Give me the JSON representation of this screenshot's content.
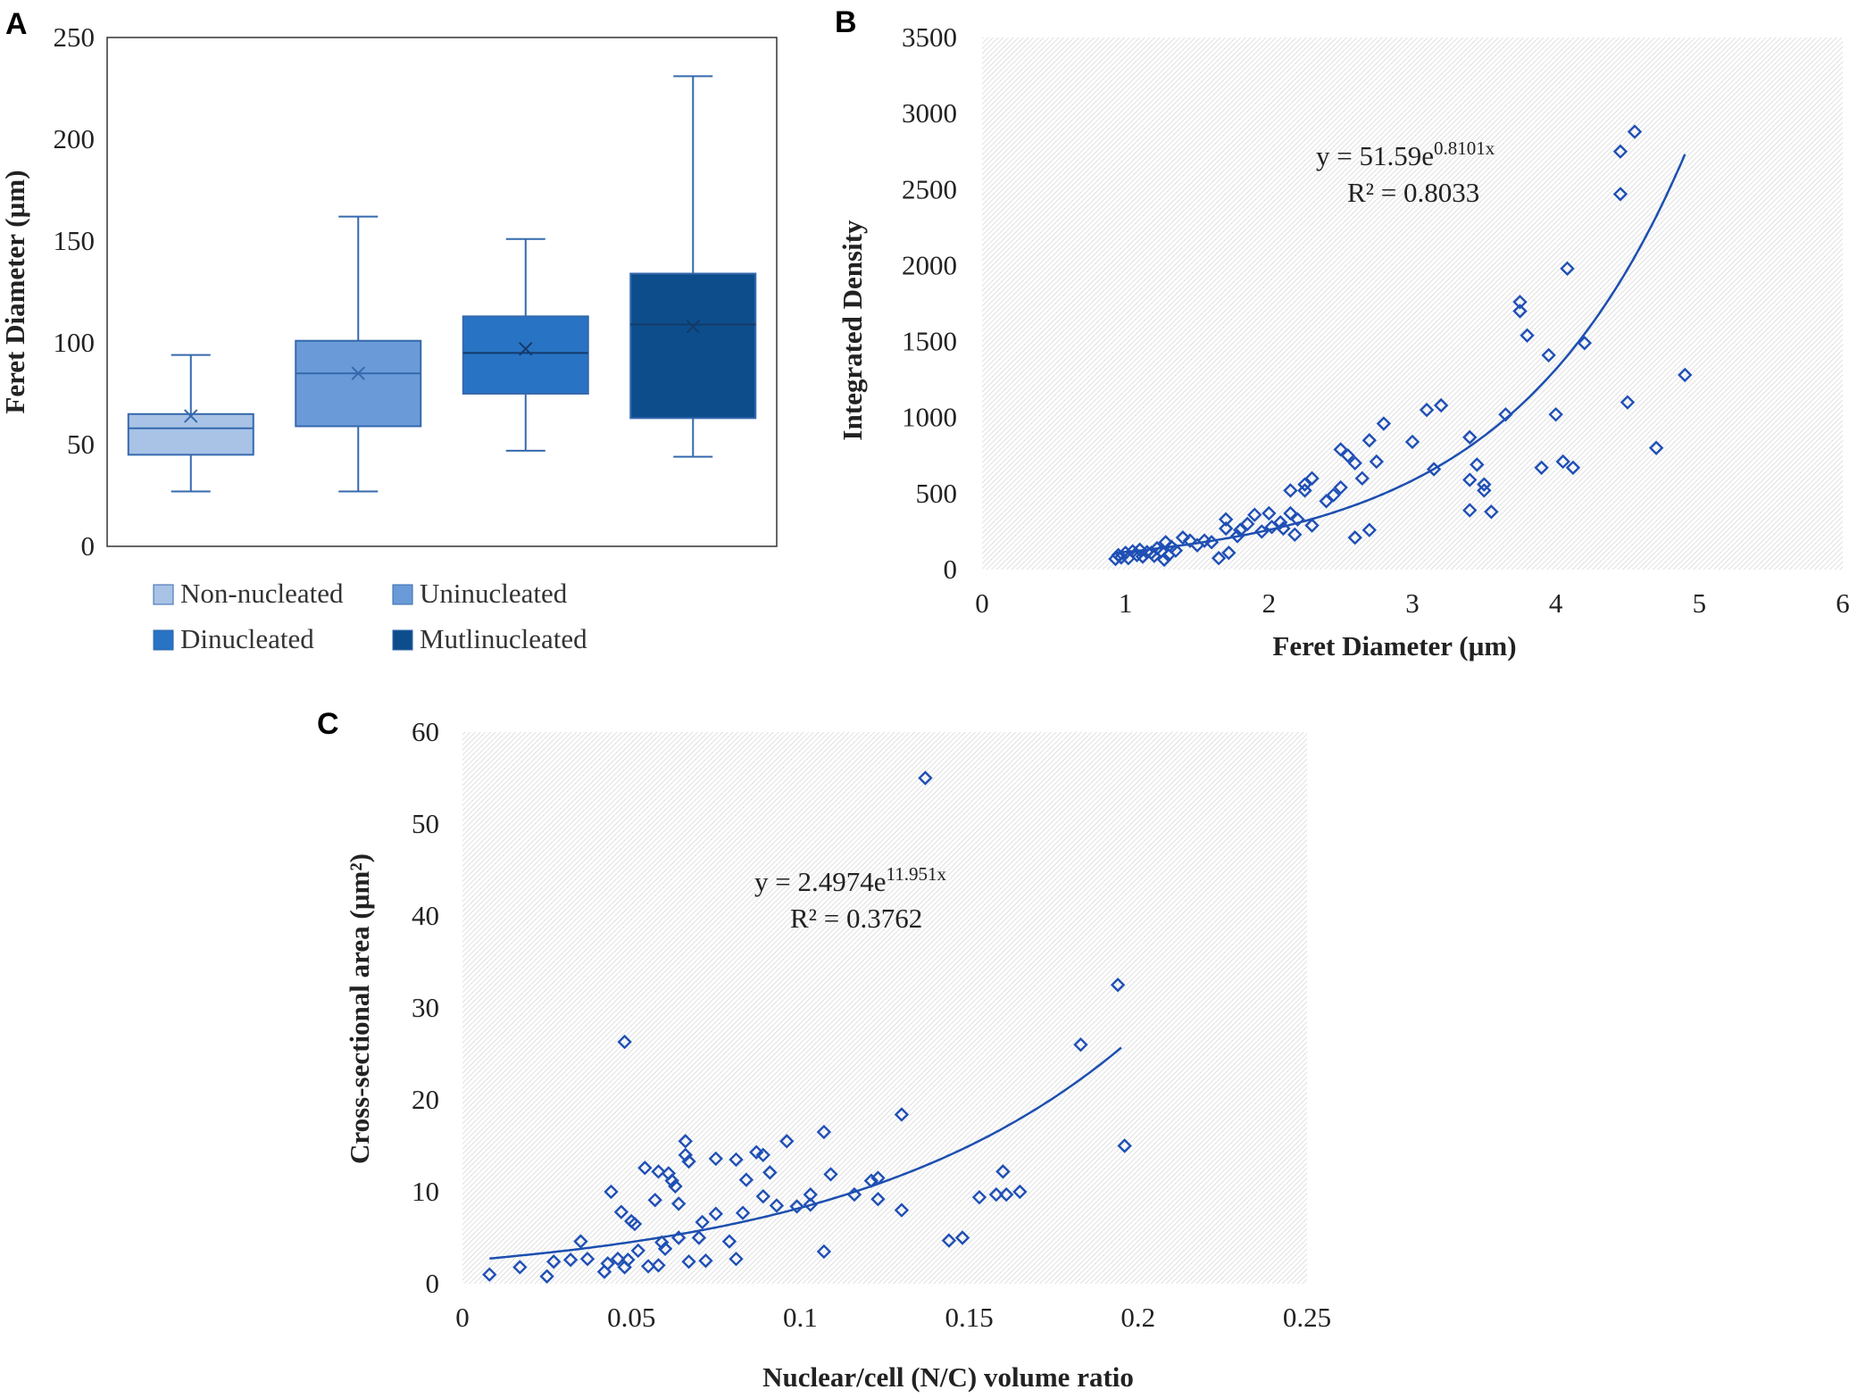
{
  "colors": {
    "box_non": "#a8c3e6",
    "box_uni": "#6a9bd8",
    "box_di": "#2873c3",
    "box_multi": "#0d4d8c",
    "box_stroke": "#3569ad",
    "marker": "#1f4fb5",
    "trend": "#1d4fb0",
    "axis_text": "#222222"
  },
  "chart_data": [
    {
      "panel": "A",
      "type": "box",
      "title": "",
      "xlabel": "",
      "ylabel": "Feret Diameter (µm)",
      "ylim": [
        0,
        250
      ],
      "yticks": [
        "0",
        "50",
        "100",
        "150",
        "200",
        "250"
      ],
      "grid": false,
      "legend_position": "bottom",
      "series": [
        {
          "name": "Non-nucleated",
          "min": 27,
          "q1": 45,
          "median": 58,
          "q3": 65,
          "max": 94,
          "mean": 64,
          "color_key": "box_non"
        },
        {
          "name": "Uninucleated",
          "min": 27,
          "q1": 59,
          "median": 85,
          "q3": 101,
          "max": 162,
          "mean": 85,
          "color_key": "box_uni"
        },
        {
          "name": "Dinucleated",
          "min": 47,
          "q1": 75,
          "median": 95,
          "q3": 113,
          "max": 151,
          "mean": 97,
          "color_key": "box_di"
        },
        {
          "name": "Mutlinucleated",
          "min": 44,
          "q1": 63,
          "median": 109,
          "q3": 134,
          "max": 231,
          "mean": 108,
          "color_key": "box_multi"
        }
      ]
    },
    {
      "panel": "B",
      "type": "scatter",
      "title": "",
      "xlabel": "Feret Diameter (µm)",
      "ylabel": "Integrated Density",
      "xlim": [
        0,
        6
      ],
      "ylim": [
        0,
        3500
      ],
      "xticks": [
        "0",
        "1",
        "2",
        "3",
        "4",
        "5",
        "6"
      ],
      "yticks": [
        "0",
        "500",
        "1000",
        "1500",
        "2000",
        "2500",
        "3000",
        "3500"
      ],
      "grid": false,
      "trendline": {
        "a": 51.59,
        "b": 0.8101,
        "x_range": [
          0.93,
          4.9
        ],
        "label_eq": "y = 51.59e",
        "label_exp": "0.8101x",
        "label_r2": "R² = 0.8033"
      },
      "points": [
        [
          0.93,
          70
        ],
        [
          0.95,
          95
        ],
        [
          0.97,
          80
        ],
        [
          1.0,
          110
        ],
        [
          1.02,
          75
        ],
        [
          1.05,
          120
        ],
        [
          1.08,
          95
        ],
        [
          1.1,
          130
        ],
        [
          1.12,
          85
        ],
        [
          1.15,
          115
        ],
        [
          1.18,
          110
        ],
        [
          1.2,
          90
        ],
        [
          1.22,
          140
        ],
        [
          1.25,
          120
        ],
        [
          1.27,
          65
        ],
        [
          1.28,
          180
        ],
        [
          1.3,
          95
        ],
        [
          1.32,
          150
        ],
        [
          1.35,
          125
        ],
        [
          1.4,
          210
        ],
        [
          1.45,
          190
        ],
        [
          1.5,
          160
        ],
        [
          1.55,
          190
        ],
        [
          1.6,
          180
        ],
        [
          1.65,
          75
        ],
        [
          1.7,
          330
        ],
        [
          1.7,
          270
        ],
        [
          1.72,
          110
        ],
        [
          1.78,
          220
        ],
        [
          1.8,
          260
        ],
        [
          1.85,
          300
        ],
        [
          1.9,
          360
        ],
        [
          1.95,
          250
        ],
        [
          2.0,
          370
        ],
        [
          2.02,
          280
        ],
        [
          2.08,
          310
        ],
        [
          2.1,
          270
        ],
        [
          2.15,
          520
        ],
        [
          2.15,
          370
        ],
        [
          2.18,
          230
        ],
        [
          2.2,
          330
        ],
        [
          2.25,
          560
        ],
        [
          2.25,
          520
        ],
        [
          2.3,
          600
        ],
        [
          2.3,
          290
        ],
        [
          2.4,
          450
        ],
        [
          2.45,
          490
        ],
        [
          2.5,
          540
        ],
        [
          2.5,
          790
        ],
        [
          2.55,
          750
        ],
        [
          2.6,
          700
        ],
        [
          2.6,
          210
        ],
        [
          2.65,
          600
        ],
        [
          2.7,
          850
        ],
        [
          2.7,
          260
        ],
        [
          2.75,
          710
        ],
        [
          2.8,
          960
        ],
        [
          3.0,
          840
        ],
        [
          3.1,
          1050
        ],
        [
          3.15,
          660
        ],
        [
          3.2,
          1080
        ],
        [
          3.4,
          870
        ],
        [
          3.4,
          390
        ],
        [
          3.4,
          590
        ],
        [
          3.45,
          690
        ],
        [
          3.5,
          520
        ],
        [
          3.5,
          560
        ],
        [
          3.55,
          380
        ],
        [
          3.65,
          1020
        ],
        [
          3.75,
          1760
        ],
        [
          3.75,
          1700
        ],
        [
          3.8,
          1540
        ],
        [
          3.9,
          670
        ],
        [
          3.95,
          1410
        ],
        [
          4.0,
          1020
        ],
        [
          4.05,
          710
        ],
        [
          4.08,
          1980
        ],
        [
          4.12,
          670
        ],
        [
          4.2,
          1490
        ],
        [
          4.45,
          2470
        ],
        [
          4.45,
          2750
        ],
        [
          4.5,
          1100
        ],
        [
          4.55,
          2880
        ],
        [
          4.7,
          800
        ],
        [
          4.9,
          1280
        ]
      ]
    },
    {
      "panel": "C",
      "type": "scatter",
      "title": "",
      "xlabel": "Nuclear/cell (N/C) volume ratio",
      "ylabel": "Cross-sectional area (µm²)",
      "xlim": [
        0,
        0.25
      ],
      "ylim": [
        0,
        60
      ],
      "xticks": [
        "0",
        "0.05",
        "0.1",
        "0.15",
        "0.2",
        "0.25"
      ],
      "yticks": [
        "0",
        "10",
        "20",
        "30",
        "40",
        "50",
        "60"
      ],
      "grid": false,
      "trendline": {
        "a": 2.4974,
        "b": 11.951,
        "x_range": [
          0.008,
          0.195
        ],
        "label_eq": "y = 2.4974e",
        "label_exp": "11.951x",
        "label_r2": "R² = 0.3762"
      },
      "points": [
        [
          0.008,
          1.0
        ],
        [
          0.017,
          1.8
        ],
        [
          0.025,
          0.8
        ],
        [
          0.027,
          2.4
        ],
        [
          0.032,
          2.6
        ],
        [
          0.035,
          4.6
        ],
        [
          0.037,
          2.7
        ],
        [
          0.042,
          1.3
        ],
        [
          0.043,
          2.2
        ],
        [
          0.044,
          10.0
        ],
        [
          0.046,
          2.7
        ],
        [
          0.047,
          7.8
        ],
        [
          0.048,
          1.8
        ],
        [
          0.048,
          26.3
        ],
        [
          0.049,
          2.6
        ],
        [
          0.05,
          6.8
        ],
        [
          0.051,
          6.5
        ],
        [
          0.052,
          3.6
        ],
        [
          0.054,
          12.6
        ],
        [
          0.055,
          1.9
        ],
        [
          0.057,
          9.1
        ],
        [
          0.058,
          2.0
        ],
        [
          0.058,
          12.2
        ],
        [
          0.059,
          4.5
        ],
        [
          0.06,
          3.8
        ],
        [
          0.061,
          12.0
        ],
        [
          0.062,
          11.2
        ],
        [
          0.063,
          10.6
        ],
        [
          0.064,
          5.0
        ],
        [
          0.064,
          8.7
        ],
        [
          0.066,
          15.5
        ],
        [
          0.066,
          14.0
        ],
        [
          0.067,
          13.3
        ],
        [
          0.067,
          2.4
        ],
        [
          0.07,
          5.0
        ],
        [
          0.071,
          6.7
        ],
        [
          0.072,
          2.5
        ],
        [
          0.075,
          13.6
        ],
        [
          0.075,
          7.6
        ],
        [
          0.079,
          4.6
        ],
        [
          0.081,
          2.7
        ],
        [
          0.081,
          13.5
        ],
        [
          0.083,
          7.7
        ],
        [
          0.084,
          11.3
        ],
        [
          0.087,
          14.3
        ],
        [
          0.089,
          14.0
        ],
        [
          0.089,
          9.5
        ],
        [
          0.091,
          12.1
        ],
        [
          0.093,
          8.5
        ],
        [
          0.096,
          15.5
        ],
        [
          0.099,
          8.4
        ],
        [
          0.103,
          8.6
        ],
        [
          0.103,
          9.7
        ],
        [
          0.107,
          16.5
        ],
        [
          0.107,
          3.5
        ],
        [
          0.109,
          11.9
        ],
        [
          0.116,
          9.7
        ],
        [
          0.121,
          11.2
        ],
        [
          0.123,
          9.2
        ],
        [
          0.123,
          11.5
        ],
        [
          0.13,
          8.0
        ],
        [
          0.13,
          18.4
        ],
        [
          0.144,
          4.7
        ],
        [
          0.148,
          5.0
        ],
        [
          0.137,
          55.0
        ],
        [
          0.153,
          9.4
        ],
        [
          0.158,
          9.7
        ],
        [
          0.16,
          12.2
        ],
        [
          0.161,
          9.7
        ],
        [
          0.165,
          10.0
        ],
        [
          0.183,
          26.0
        ],
        [
          0.194,
          32.5
        ],
        [
          0.196,
          15.0
        ]
      ]
    }
  ],
  "panels": {
    "A": {
      "letter": "A"
    },
    "B": {
      "letter": "B"
    },
    "C": {
      "letter": "C"
    }
  }
}
